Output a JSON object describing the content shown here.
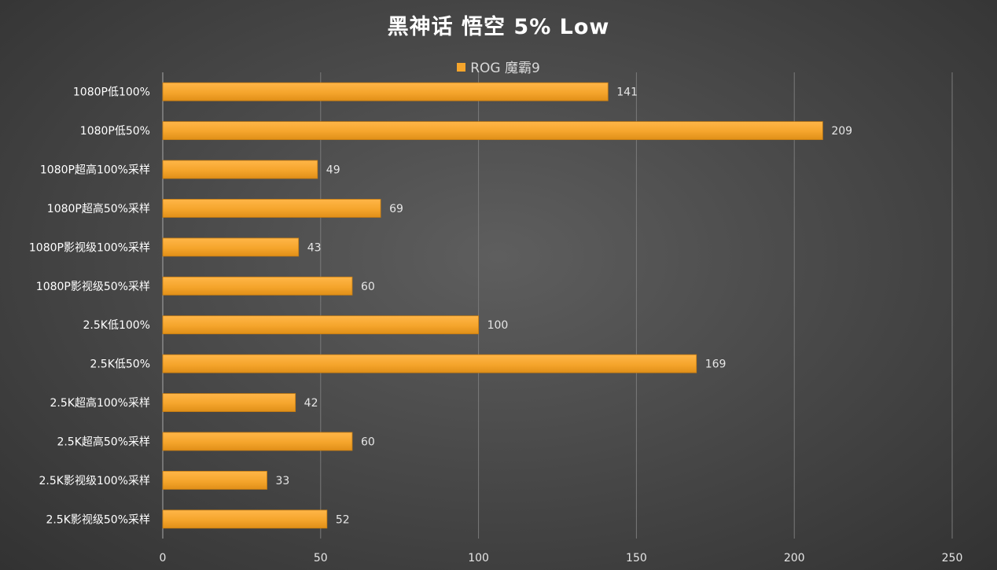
{
  "chart_data": {
    "type": "bar",
    "orientation": "horizontal",
    "title": "黑神话 悟空 5% Low",
    "categories": [
      "1080P低100%",
      "1080P低50%",
      "1080P超高100%采样",
      "1080P超高50%采样",
      "1080P影视级100%采样",
      "1080P影视级50%采样",
      "2.5K低100%",
      "2.5K低50%",
      "2.5K超高100%采样",
      "2.5K超高50%采样",
      "2.5K影视级100%采样",
      "2.5K影视级50%采样"
    ],
    "series": [
      {
        "name": "ROG 魔霸9",
        "values": [
          141,
          209,
          49,
          69,
          43,
          60,
          100,
          169,
          42,
          60,
          33,
          52
        ]
      }
    ],
    "xlim": [
      0,
      250
    ],
    "xticks": [
      0,
      50,
      100,
      150,
      200,
      250
    ],
    "xlabel": "",
    "ylabel": "",
    "grid": "vertical",
    "legend_position": "top",
    "data_labels": true
  },
  "colors": {
    "bar": "#f5a52c",
    "bar_edge": "#c77d12",
    "grid": "#7a7a7a",
    "axis": "#a8a8a8",
    "text": "#ffffff",
    "label_text": "#e6e6e6"
  }
}
